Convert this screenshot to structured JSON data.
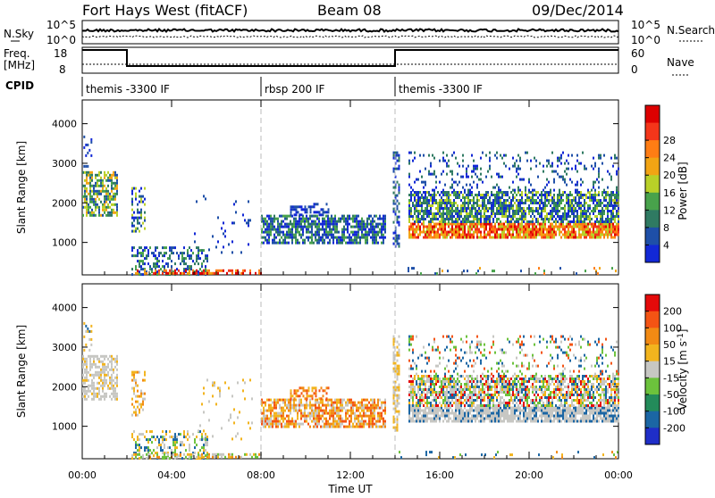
{
  "header": {
    "station": "Fort Hays West (fitACF)",
    "beam": "Beam 08",
    "date": "09/Dec/2014"
  },
  "sky_panel": {
    "left_label": "N.Sky",
    "right_label": "N.Search",
    "y_top": "10^5",
    "y_bottom": "10^0",
    "right_top": "10^5",
    "right_bottom": "10^0"
  },
  "freq_panel": {
    "left_label_line1": "Freq.",
    "left_label_line2": "[MHz]",
    "left_top": "18",
    "left_bottom": "8",
    "right_label": "Nave",
    "right_top": "60",
    "right_bottom": "0"
  },
  "cpid_panel": {
    "label": "CPID",
    "segments": [
      {
        "start_h": 0,
        "end_h": 8,
        "text": "themis -3300 IF"
      },
      {
        "start_h": 8,
        "end_h": 14,
        "text": "rbsp 200 IF"
      },
      {
        "start_h": 14,
        "end_h": 24,
        "text": "themis -3300 IF"
      }
    ]
  },
  "x_axis": {
    "label": "Time UT",
    "ticks": [
      "00:00",
      "04:00",
      "08:00",
      "12:00",
      "16:00",
      "20:00",
      "00:00"
    ]
  },
  "chart_data": [
    {
      "type": "heatmap",
      "panel": "power",
      "ylabel": "Slant Range [km]",
      "yticks": [
        1000,
        2000,
        3000,
        4000
      ],
      "ylim": [
        180,
        4600
      ],
      "xlim_hours": [
        0,
        24
      ],
      "colorbar": {
        "label": "Power [dB]",
        "ticks": [
          "4",
          "8",
          "12",
          "16",
          "20",
          "24",
          "28"
        ],
        "colors": [
          "#1228d6",
          "#1e4fa8",
          "#2f7a62",
          "#48a24b",
          "#b9d028",
          "#f2a414",
          "#ff7d14",
          "#f4361a",
          "#dd0000"
        ]
      },
      "regions": [
        {
          "t0": 0.0,
          "t1": 1.6,
          "r0": 1700,
          "r1": 2800,
          "colors": [
            "#1e4fa8",
            "#2f7a62",
            "#48a24b",
            "#b9d028",
            "#f2a414"
          ],
          "density": 0.62
        },
        {
          "t0": 0.05,
          "t1": 0.45,
          "r0": 2900,
          "r1": 3700,
          "colors": [
            "#1228d6",
            "#1e4fa8"
          ],
          "density": 0.22
        },
        {
          "t0": 2.2,
          "t1": 2.8,
          "r0": 1300,
          "r1": 2400,
          "colors": [
            "#1228d6",
            "#1e4fa8",
            "#2f7a62",
            "#b9d028"
          ],
          "density": 0.4
        },
        {
          "t0": 2.2,
          "t1": 5.6,
          "r0": 200,
          "r1": 900,
          "colors": [
            "#1228d6",
            "#1e4fa8",
            "#2f7a62",
            "#48a24b"
          ],
          "density": 0.38
        },
        {
          "t0": 2.2,
          "t1": 8.0,
          "r0": 200,
          "r1": 320,
          "colors": [
            "#f4361a",
            "#ff7d14",
            "#f2a414",
            "#dd0000"
          ],
          "density": 0.55
        },
        {
          "t0": 5.0,
          "t1": 7.6,
          "r0": 700,
          "r1": 2200,
          "colors": [
            "#1228d6",
            "#1e4fa8"
          ],
          "density": 0.05
        },
        {
          "t0": 8.0,
          "t1": 13.6,
          "r0": 1000,
          "r1": 1700,
          "colors": [
            "#1228d6",
            "#1e4fa8",
            "#2f7a62",
            "#48a24b"
          ],
          "density": 0.7
        },
        {
          "t0": 9.3,
          "t1": 11.0,
          "r0": 1700,
          "r1": 2000,
          "colors": [
            "#1228d6",
            "#1e4fa8"
          ],
          "density": 0.5
        },
        {
          "t0": 13.9,
          "t1": 14.15,
          "r0": 900,
          "r1": 3300,
          "colors": [
            "#1228d6",
            "#1e4fa8",
            "#2f7a62"
          ],
          "density": 0.5
        },
        {
          "t0": 14.6,
          "t1": 24.0,
          "r0": 1100,
          "r1": 1500,
          "colors": [
            "#f4361a",
            "#ff7d14",
            "#f2a414",
            "#dd0000",
            "#b9d028"
          ],
          "density": 0.85
        },
        {
          "t0": 14.6,
          "t1": 24.0,
          "r0": 1500,
          "r1": 2300,
          "colors": [
            "#48a24b",
            "#2f7a62",
            "#1e4fa8",
            "#b9d028",
            "#1228d6"
          ],
          "density": 0.7
        },
        {
          "t0": 14.6,
          "t1": 24.0,
          "r0": 2300,
          "r1": 3300,
          "colors": [
            "#1228d6",
            "#1e4fa8",
            "#2f7a62"
          ],
          "density": 0.17
        },
        {
          "t0": 14.0,
          "t1": 24.0,
          "r0": 200,
          "r1": 380,
          "colors": [
            "#f2a414",
            "#48a24b",
            "#1e4fa8",
            "#ff7d14"
          ],
          "density": 0.08
        }
      ]
    },
    {
      "type": "heatmap",
      "panel": "velocity",
      "ylabel": "Slant Range [km]",
      "yticks": [
        1000,
        2000,
        3000,
        4000
      ],
      "ylim": [
        180,
        4600
      ],
      "xlim_hours": [
        0,
        24
      ],
      "colorbar": {
        "label": "Velocity [m s^-1]",
        "ticks": [
          "200",
          "100",
          "50",
          "15",
          "-15",
          "-50",
          "-100",
          "-200"
        ],
        "colors": [
          "#1f2ec8",
          "#1b66a4",
          "#238b5a",
          "#6cc23c",
          "#c7c7c3",
          "#f2b41e",
          "#f28a14",
          "#f45414",
          "#e40a0a"
        ]
      },
      "regions": [
        {
          "t0": 0.0,
          "t1": 1.6,
          "r0": 1700,
          "r1": 2800,
          "colors": [
            "#c7c7c3",
            "#c7c7c3",
            "#c7c7c3",
            "#f2b41e"
          ],
          "density": 0.62
        },
        {
          "t0": 0.05,
          "t1": 0.45,
          "r0": 2900,
          "r1": 3700,
          "colors": [
            "#c7c7c3",
            "#1b66a4",
            "#f2b41e"
          ],
          "density": 0.22
        },
        {
          "t0": 2.2,
          "t1": 2.8,
          "r0": 1300,
          "r1": 2400,
          "colors": [
            "#c7c7c3",
            "#f2b41e",
            "#f28a14"
          ],
          "density": 0.4
        },
        {
          "t0": 2.2,
          "t1": 5.6,
          "r0": 200,
          "r1": 900,
          "colors": [
            "#c7c7c3",
            "#f2b41e",
            "#1b66a4",
            "#6cc23c"
          ],
          "density": 0.38
        },
        {
          "t0": 2.2,
          "t1": 8.0,
          "r0": 200,
          "r1": 320,
          "colors": [
            "#f28a14",
            "#6cc23c",
            "#f2b41e",
            "#c7c7c3"
          ],
          "density": 0.55
        },
        {
          "t0": 5.0,
          "t1": 7.6,
          "r0": 700,
          "r1": 2200,
          "colors": [
            "#f2b41e",
            "#c7c7c3"
          ],
          "density": 0.05
        },
        {
          "t0": 8.0,
          "t1": 13.6,
          "r0": 1000,
          "r1": 1700,
          "colors": [
            "#f2b41e",
            "#f28a14",
            "#f45414",
            "#c7c7c3"
          ],
          "density": 0.7
        },
        {
          "t0": 9.3,
          "t1": 11.0,
          "r0": 1700,
          "r1": 2000,
          "colors": [
            "#f28a14",
            "#f45414",
            "#f2b41e"
          ],
          "density": 0.5
        },
        {
          "t0": 13.9,
          "t1": 14.15,
          "r0": 900,
          "r1": 3300,
          "colors": [
            "#c7c7c3",
            "#f2b41e"
          ],
          "density": 0.5
        },
        {
          "t0": 14.6,
          "t1": 24.0,
          "r0": 1100,
          "r1": 1500,
          "colors": [
            "#c7c7c3",
            "#c7c7c3",
            "#c7c7c3",
            "#1b66a4"
          ],
          "density": 0.85
        },
        {
          "t0": 14.6,
          "t1": 24.0,
          "r0": 1500,
          "r1": 2300,
          "colors": [
            "#c7c7c3",
            "#c7c7c3",
            "#1b66a4",
            "#e40a0a",
            "#6cc23c",
            "#f2b41e"
          ],
          "density": 0.7
        },
        {
          "t0": 14.6,
          "t1": 24.0,
          "r0": 2300,
          "r1": 3300,
          "colors": [
            "#c7c7c3",
            "#1b66a4",
            "#f45414",
            "#6cc23c"
          ],
          "density": 0.17
        },
        {
          "t0": 14.0,
          "t1": 24.0,
          "r0": 200,
          "r1": 380,
          "colors": [
            "#6cc23c",
            "#f2b41e",
            "#1b66a4",
            "#f28a14"
          ],
          "density": 0.08
        }
      ]
    }
  ]
}
